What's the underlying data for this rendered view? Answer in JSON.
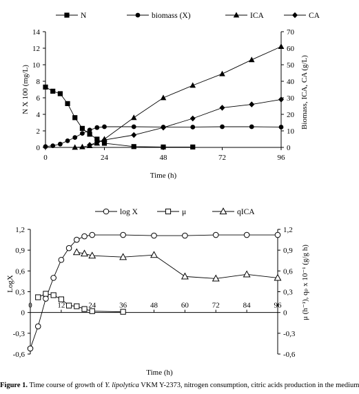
{
  "chart_data": [
    {
      "type": "line",
      "x_axis": {
        "label": "Time (h)",
        "ticks": [
          0,
          24,
          48,
          72,
          96
        ],
        "range": [
          0,
          96
        ]
      },
      "y_left": {
        "label": "N X 100 (mg/L)",
        "ticks": [
          0,
          2,
          4,
          6,
          8,
          10,
          12,
          14
        ],
        "range": [
          0,
          14
        ]
      },
      "y_right": {
        "label": "Biomass, ICA, CA (g/L)",
        "ticks": [
          0,
          10,
          20,
          30,
          40,
          50,
          60,
          70
        ],
        "range": [
          0,
          70
        ]
      },
      "legend": {
        "position": "top",
        "entries": [
          "N",
          "biomass (X)",
          "ICA",
          "CA"
        ]
      },
      "series": [
        {
          "name": "N",
          "marker": "square",
          "axis": "left",
          "x": [
            0,
            3,
            6,
            9,
            12,
            15,
            18,
            21,
            24,
            36,
            48,
            60
          ],
          "y": [
            7.3,
            6.8,
            6.5,
            5.3,
            3.6,
            2.3,
            1.6,
            1.0,
            0.5,
            0.1,
            0.05,
            0.05
          ]
        },
        {
          "name": "biomass (X)",
          "marker": "circle",
          "axis": "right",
          "x": [
            0,
            3,
            6,
            9,
            12,
            15,
            18,
            21,
            24,
            36,
            48,
            60,
            72,
            84,
            96
          ],
          "y": [
            0.5,
            1,
            2,
            4,
            6,
            8.5,
            10.5,
            12,
            12.5,
            12.5,
            12.3,
            12.3,
            12.5,
            12.5,
            12.3
          ]
        },
        {
          "name": "ICA",
          "marker": "triangle",
          "axis": "right",
          "x": [
            12,
            15,
            18,
            21,
            24,
            36,
            48,
            60,
            72,
            84,
            96
          ],
          "y": [
            0,
            0.3,
            1,
            2.5,
            5,
            18,
            30,
            37.5,
            44.5,
            53,
            61
          ]
        },
        {
          "name": "CA",
          "marker": "diamond",
          "axis": "right",
          "x": [
            18,
            21,
            24,
            36,
            48,
            60,
            72,
            84,
            96
          ],
          "y": [
            1.5,
            3,
            4.5,
            7.5,
            12,
            17.5,
            24,
            26,
            29
          ]
        }
      ]
    },
    {
      "type": "line",
      "x_axis": {
        "label": "Time (h)",
        "ticks": [
          0,
          12,
          24,
          36,
          48,
          60,
          72,
          84,
          96
        ],
        "range": [
          0,
          96
        ]
      },
      "y_left": {
        "label": "LogX",
        "ticks": [
          "-0,6",
          "-0,3",
          "0",
          "0,3",
          "0,6",
          "0,9",
          "1,2"
        ],
        "range": [
          -0.6,
          1.2
        ]
      },
      "y_right": {
        "label": "μ (h⁻¹), qₚ x 10⁻¹ (g/g h)",
        "ticks": [
          "-0,6",
          "-0,3",
          "0",
          "0,3",
          "0,6",
          "0,9",
          "1,2"
        ],
        "range": [
          -0.6,
          1.2
        ]
      },
      "legend": {
        "position": "top",
        "entries": [
          "log X",
          "μ",
          "qICA"
        ]
      },
      "series": [
        {
          "name": "log X",
          "marker": "circle-open",
          "x": [
            0,
            3,
            6,
            9,
            12,
            15,
            18,
            21,
            24,
            36,
            48,
            60,
            72,
            84,
            96
          ],
          "y": [
            -0.52,
            -0.2,
            0.2,
            0.5,
            0.76,
            0.93,
            1.05,
            1.1,
            1.12,
            1.12,
            1.11,
            1.11,
            1.12,
            1.12,
            1.12
          ]
        },
        {
          "name": "μ",
          "marker": "square-open",
          "x": [
            3,
            6,
            9,
            12,
            15,
            18,
            21,
            24,
            36
          ],
          "y": [
            0.22,
            0.27,
            0.25,
            0.19,
            0.1,
            0.09,
            0.05,
            0.02,
            0.01
          ]
        },
        {
          "name": "qICA",
          "marker": "triangle-open",
          "x": [
            18,
            21,
            24,
            36,
            48,
            60,
            72,
            84,
            96
          ],
          "y": [
            0.87,
            0.85,
            0.82,
            0.8,
            0.83,
            0.52,
            0.49,
            0.55,
            0.5
          ]
        }
      ]
    }
  ],
  "caption": {
    "label": "Figure 1.",
    "text_before": " Time course of growth of ",
    "organism": "Y. lipolytica",
    "text_after": " VKM Y-2373, nitrogen consumption, citric acids production in the medium"
  }
}
